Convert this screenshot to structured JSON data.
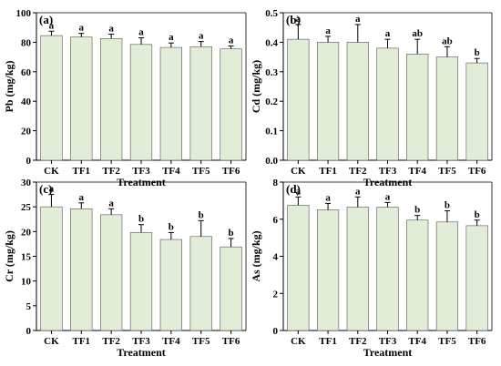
{
  "chart_data": [
    {
      "type": "bar",
      "panel_label": "(a)",
      "categories": [
        "CK",
        "TF1",
        "TF2",
        "TF3",
        "TF4",
        "TF5",
        "TF6"
      ],
      "values": [
        84.5,
        83.5,
        82.5,
        78.5,
        76.5,
        77.0,
        75.5
      ],
      "errors": [
        3.0,
        2.5,
        3.0,
        4.5,
        3.0,
        3.5,
        2.0
      ],
      "significance": [
        "a",
        "a",
        "a",
        "a",
        "a",
        "a",
        "a"
      ],
      "xlabel": "Treatment",
      "ylabel": "Pb (mg/kg)",
      "ylim": [
        0,
        100
      ],
      "yticks": [
        0,
        20,
        40,
        60,
        80,
        100
      ],
      "ytick_labels": [
        "0",
        "20",
        "40",
        "60",
        "80",
        "100"
      ],
      "grid": false
    },
    {
      "type": "bar",
      "panel_label": "(b)",
      "categories": [
        "CK",
        "TF1",
        "TF2",
        "TF3",
        "TF4",
        "TF5",
        "TF6"
      ],
      "values": [
        0.41,
        0.4,
        0.4,
        0.38,
        0.36,
        0.35,
        0.33
      ],
      "errors": [
        0.05,
        0.02,
        0.06,
        0.03,
        0.05,
        0.035,
        0.015
      ],
      "significance": [
        "a",
        "a",
        "a",
        "a",
        "ab",
        "ab",
        "b"
      ],
      "xlabel": "Treatment",
      "ylabel": "Cd (mg/kg)",
      "ylim": [
        0,
        0.5
      ],
      "yticks": [
        0,
        0.1,
        0.2,
        0.3,
        0.4,
        0.5
      ],
      "ytick_labels": [
        "0.0",
        "0.1",
        "0.2",
        "0.3",
        "0.4",
        "0.5"
      ],
      "grid": false
    },
    {
      "type": "bar",
      "panel_label": "(c)",
      "categories": [
        "CK",
        "TF1",
        "TF2",
        "TF3",
        "TF4",
        "TF5",
        "TF6"
      ],
      "values": [
        25.0,
        24.6,
        23.4,
        19.8,
        18.4,
        19.0,
        16.9
      ],
      "errors": [
        2.5,
        1.2,
        1.2,
        1.6,
        1.4,
        3.2,
        1.7
      ],
      "significance": [
        "a",
        "a",
        "a",
        "b",
        "b",
        "b",
        "b"
      ],
      "xlabel": "Treatment",
      "ylabel": "Cr (mg/kg)",
      "ylim": [
        0,
        30
      ],
      "yticks": [
        0,
        5,
        10,
        15,
        20,
        25,
        30
      ],
      "ytick_labels": [
        "0",
        "5",
        "10",
        "15",
        "20",
        "25",
        "30"
      ],
      "grid": false
    },
    {
      "type": "bar",
      "panel_label": "(d)",
      "categories": [
        "CK",
        "TF1",
        "TF2",
        "TF3",
        "TF4",
        "TF5",
        "TF6"
      ],
      "values": [
        6.75,
        6.5,
        6.65,
        6.65,
        5.95,
        5.85,
        5.65
      ],
      "errors": [
        0.45,
        0.35,
        0.55,
        0.25,
        0.25,
        0.6,
        0.3
      ],
      "significance": [
        "a",
        "a",
        "a",
        "a",
        "b",
        "b",
        "b"
      ],
      "xlabel": "Treatment",
      "ylabel": "As (mg/kg)",
      "ylim": [
        0,
        8
      ],
      "yticks": [
        0,
        2,
        4,
        6,
        8
      ],
      "ytick_labels": [
        "0",
        "2",
        "4",
        "6",
        "8"
      ],
      "grid": false
    }
  ],
  "colors": {
    "bar_fill": "#e2edd8",
    "bar_stroke": "#555555",
    "axis": "#000000"
  }
}
